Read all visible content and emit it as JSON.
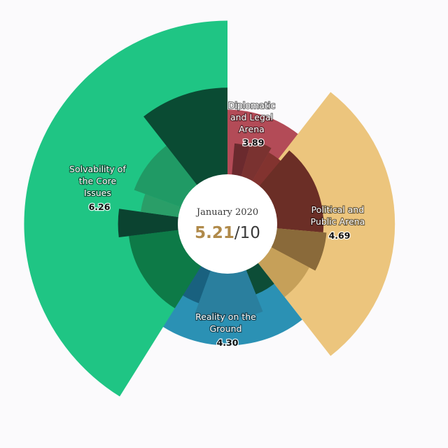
{
  "chart_data": {
    "type": "radial-bar",
    "date": "January 2020",
    "overall_score": "5.21",
    "overall_max": "/10",
    "scale_max": 10,
    "categories": [
      {
        "key": "diplomatic",
        "label_lines": [
          "Diplomatic",
          "and Legal",
          "Arena"
        ],
        "value": "3.89",
        "color": "#b34b57",
        "outer_value": 3.89,
        "start_deg": 0,
        "end_deg": 52,
        "sub": [
          {
            "color": "#6b2a2e",
            "value": 1.9,
            "s": 5,
            "e": 16
          },
          {
            "color": "#7a3230",
            "value": 2.3,
            "s": 16,
            "e": 30
          },
          {
            "color": "#82332f",
            "value": 2.0,
            "s": 30,
            "e": 46
          }
        ]
      },
      {
        "key": "political",
        "label_lines": [
          "Political and",
          "Public Arena"
        ],
        "value": "4.69",
        "color": "#ecc57d",
        "outer_value": 7.05,
        "start_deg": 38,
        "end_deg": 142,
        "sub": [
          {
            "color": "#6b2e26",
            "value": 2.8,
            "s": 40,
            "e": 95
          },
          {
            "color": "#8a6a3a",
            "value": 3.0,
            "s": 95,
            "e": 118
          },
          {
            "color": "#c6a059",
            "value": 2.6,
            "s": 118,
            "e": 142
          }
        ]
      },
      {
        "key": "reality",
        "label_lines": [
          "Reality on the",
          "Ground"
        ],
        "value": "4.30",
        "color": "#2b91b4",
        "outer_value": 4.31,
        "start_deg": 142,
        "end_deg": 228,
        "sub": [
          {
            "color": "#0d4d37",
            "value": 1.6,
            "s": 142,
            "e": 158
          },
          {
            "color": "#2a7f9e",
            "value": 2.7,
            "s": 158,
            "e": 200
          },
          {
            "color": "#19617f",
            "value": 2.1,
            "s": 200,
            "e": 228
          }
        ]
      },
      {
        "key": "solvability",
        "label_lines": [
          "Solvability of",
          "the Core",
          "Issues"
        ],
        "value": "6.26",
        "color": "#1fc584",
        "outer_value": 9.19,
        "start_deg": 212,
        "end_deg": 360,
        "sub": [
          {
            "color": "#0d7a47",
            "value": 3.0,
            "s": 212,
            "e": 263
          },
          {
            "color": "#0b4330",
            "value": 3.6,
            "s": 263,
            "e": 278
          },
          {
            "color": "#2a9e68",
            "value": 2.3,
            "s": 278,
            "e": 290
          },
          {
            "color": "#209a65",
            "value": 3.0,
            "s": 290,
            "e": 322
          },
          {
            "color": "#0a4b33",
            "value": 5.2,
            "s": 322,
            "e": 360
          }
        ]
      }
    ],
    "grid": false,
    "legend": "none"
  }
}
